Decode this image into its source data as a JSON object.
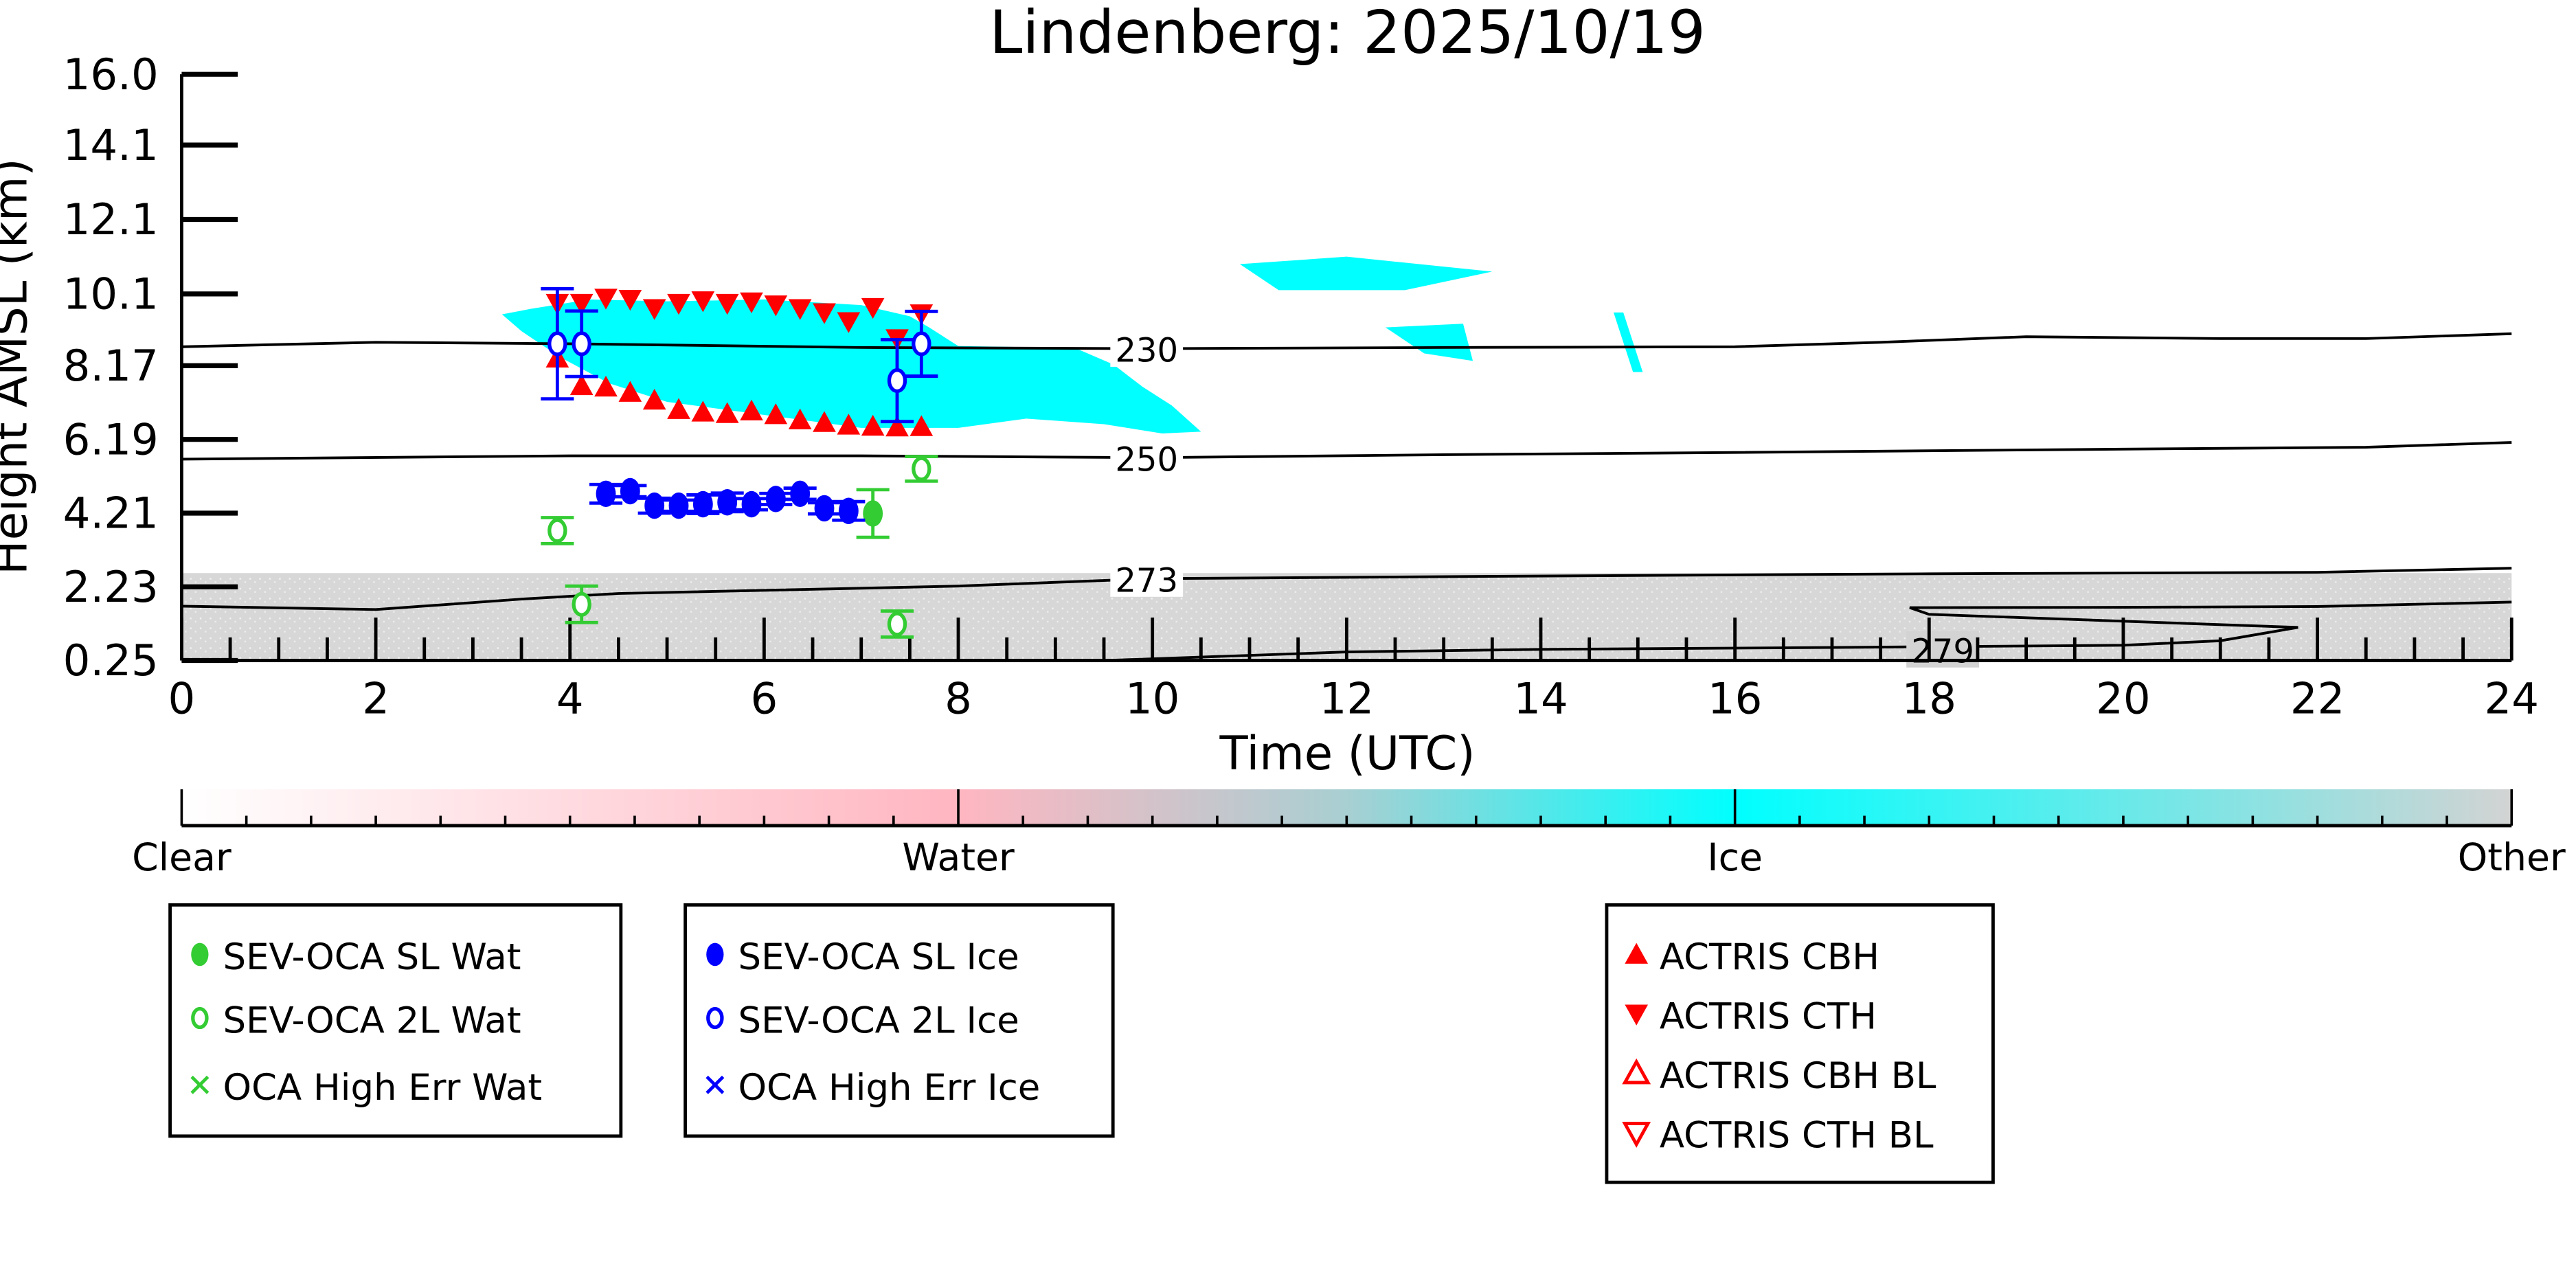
{
  "chart_data": {
    "type": "scatter",
    "title": "Lindenberg: 2025/10/19",
    "xlabel": "Time (UTC)",
    "ylabel": "Height AMSL (km)",
    "xlim": [
      0,
      24
    ],
    "ylim": [
      0.25,
      16.0
    ],
    "x_ticks": [
      "0",
      "2",
      "4",
      "6",
      "8",
      "10",
      "12",
      "14",
      "16",
      "18",
      "20",
      "22",
      "24"
    ],
    "y_ticks": [
      "0.25",
      "2.23",
      "4.21",
      "6.19",
      "8.17",
      "10.1",
      "12.1",
      "14.1",
      "16.0"
    ],
    "y_tick_values": [
      0.25,
      2.23,
      4.21,
      6.19,
      8.17,
      10.1,
      12.1,
      14.1,
      16.0
    ],
    "colors": {
      "red": "#ff0000",
      "blue": "#0000ff",
      "green": "#33cc33",
      "ice": "#00ffff",
      "other": "#d3d3d3",
      "water": "#ffb6c1"
    },
    "contours": [
      {
        "label": "230",
        "points": [
          [
            0,
            8.68
          ],
          [
            2,
            8.8
          ],
          [
            4,
            8.76
          ],
          [
            7,
            8.66
          ],
          [
            10,
            8.63
          ],
          [
            13,
            8.66
          ],
          [
            16,
            8.68
          ],
          [
            17.5,
            8.8
          ],
          [
            19,
            8.95
          ],
          [
            21,
            8.9
          ],
          [
            22.5,
            8.9
          ],
          [
            24,
            9.03
          ]
        ]
      },
      {
        "label": "250",
        "points": [
          [
            0,
            5.66
          ],
          [
            4,
            5.75
          ],
          [
            7,
            5.75
          ],
          [
            10,
            5.7
          ],
          [
            13,
            5.78
          ],
          [
            16,
            5.84
          ],
          [
            20,
            5.93
          ],
          [
            22.5,
            5.98
          ],
          [
            24,
            6.11
          ]
        ]
      },
      {
        "label": "273",
        "points": [
          [
            0,
            1.71
          ],
          [
            2,
            1.62
          ],
          [
            3.5,
            1.9
          ],
          [
            4.5,
            2.05
          ],
          [
            8,
            2.25
          ],
          [
            10,
            2.45
          ],
          [
            14,
            2.52
          ],
          [
            18,
            2.58
          ],
          [
            22,
            2.62
          ],
          [
            24,
            2.73
          ]
        ]
      },
      {
        "label": "279",
        "points": [
          [
            9.5,
            0.25
          ],
          [
            12,
            0.48
          ],
          [
            14,
            0.55
          ],
          [
            17,
            0.6
          ],
          [
            20,
            0.66
          ],
          [
            21,
            0.78
          ],
          [
            21.8,
            1.14
          ],
          [
            18,
            1.49
          ],
          [
            17.8,
            1.67
          ],
          [
            20,
            1.68
          ],
          [
            22,
            1.7
          ],
          [
            24,
            1.82
          ]
        ]
      }
    ],
    "ice_region": [
      [
        3.3,
        9.55
      ],
      [
        3.6,
        9.7
      ],
      [
        4.2,
        9.95
      ],
      [
        5,
        9.9
      ],
      [
        6,
        9.95
      ],
      [
        7,
        9.8
      ],
      [
        7.5,
        9.5
      ],
      [
        7.7,
        9.2
      ],
      [
        8,
        8.7
      ],
      [
        9.2,
        8.65
      ],
      [
        9.6,
        8.2
      ],
      [
        9.9,
        7.6
      ],
      [
        10.2,
        7.1
      ],
      [
        10.5,
        6.4
      ],
      [
        10.1,
        6.35
      ],
      [
        9.5,
        6.6
      ],
      [
        8.7,
        6.75
      ],
      [
        8,
        6.5
      ],
      [
        7,
        6.5
      ],
      [
        6,
        6.85
      ],
      [
        5,
        7.2
      ],
      [
        4.4,
        7.7
      ],
      [
        3.9,
        8.4
      ],
      [
        3.5,
        9.1
      ],
      [
        3.3,
        9.55
      ]
    ],
    "ice_patches": [
      [
        [
          10.9,
          10.9
        ],
        [
          12,
          11.1
        ],
        [
          13.5,
          10.7
        ],
        [
          12.6,
          10.2
        ],
        [
          11.3,
          10.2
        ]
      ],
      [
        [
          12.4,
          9.2
        ],
        [
          13.2,
          9.3
        ],
        [
          13.3,
          8.3
        ],
        [
          12.8,
          8.5
        ]
      ],
      [
        [
          14.75,
          9.6
        ],
        [
          14.85,
          9.6
        ],
        [
          15.05,
          8.0
        ],
        [
          14.95,
          8.0
        ]
      ]
    ],
    "other_top_km": 2.6,
    "series": [
      {
        "name": "SEV-OCA SL Wat",
        "marker": "filled-circle",
        "color": "#33cc33",
        "points": [
          {
            "x": 7.12,
            "y": 4.2,
            "err": 0.64
          }
        ]
      },
      {
        "name": "SEV-OCA 2L Wat",
        "marker": "open-circle",
        "color": "#33cc33",
        "points": [
          {
            "x": 3.87,
            "y": 3.74,
            "err": 0.35
          },
          {
            "x": 4.12,
            "y": 1.76,
            "err": 0.49
          },
          {
            "x": 7.37,
            "y": 1.23,
            "err": 0.35
          },
          {
            "x": 7.62,
            "y": 5.4,
            "err": 0.33
          }
        ]
      },
      {
        "name": "OCA High Err Wat",
        "marker": "x",
        "color": "#33cc33",
        "points": []
      },
      {
        "name": "SEV-OCA SL Ice",
        "marker": "filled-circle",
        "color": "#0000ff",
        "points": [
          {
            "x": 4.37,
            "y": 4.73,
            "err": 0.25
          },
          {
            "x": 4.62,
            "y": 4.8,
            "err": 0.15
          },
          {
            "x": 4.87,
            "y": 4.41,
            "err": 0.2
          },
          {
            "x": 5.12,
            "y": 4.41,
            "err": 0.15
          },
          {
            "x": 5.37,
            "y": 4.45,
            "err": 0.25
          },
          {
            "x": 5.62,
            "y": 4.5,
            "err": 0.25
          },
          {
            "x": 5.87,
            "y": 4.45,
            "err": 0.15
          },
          {
            "x": 6.12,
            "y": 4.59,
            "err": 0.15
          },
          {
            "x": 6.37,
            "y": 4.73,
            "err": 0.15
          },
          {
            "x": 6.62,
            "y": 4.34,
            "err": 0.15
          },
          {
            "x": 6.87,
            "y": 4.27,
            "err": 0.25
          }
        ]
      },
      {
        "name": "SEV-OCA 2L Ice",
        "marker": "open-circle",
        "color": "#0000ff",
        "points": [
          {
            "x": 3.87,
            "y": 8.76,
            "err": 1.48
          },
          {
            "x": 4.12,
            "y": 8.76,
            "err": 0.88
          },
          {
            "x": 7.37,
            "y": 7.77,
            "err": 1.1
          },
          {
            "x": 7.62,
            "y": 8.76,
            "err": 0.87
          }
        ]
      },
      {
        "name": "OCA High Err Ice",
        "marker": "x",
        "color": "#0000ff",
        "points": []
      },
      {
        "name": "ACTRIS CBH",
        "marker": "triangle-up",
        "color": "#ff0000",
        "points": [
          {
            "x": 3.87,
            "y": 8.37
          },
          {
            "x": 4.12,
            "y": 7.63
          },
          {
            "x": 4.37,
            "y": 7.59
          },
          {
            "x": 4.62,
            "y": 7.45
          },
          {
            "x": 4.87,
            "y": 7.24
          },
          {
            "x": 5.12,
            "y": 6.99
          },
          {
            "x": 5.37,
            "y": 6.92
          },
          {
            "x": 5.62,
            "y": 6.88
          },
          {
            "x": 5.87,
            "y": 6.95
          },
          {
            "x": 6.12,
            "y": 6.85
          },
          {
            "x": 6.37,
            "y": 6.71
          },
          {
            "x": 6.62,
            "y": 6.64
          },
          {
            "x": 6.87,
            "y": 6.57
          },
          {
            "x": 7.12,
            "y": 6.54
          },
          {
            "x": 7.37,
            "y": 6.52
          },
          {
            "x": 7.62,
            "y": 6.53
          }
        ]
      },
      {
        "name": "ACTRIS CTH",
        "marker": "triangle-down",
        "color": "#ff0000",
        "points": [
          {
            "x": 3.87,
            "y": 9.85
          },
          {
            "x": 4.12,
            "y": 9.85
          },
          {
            "x": 4.37,
            "y": 9.99
          },
          {
            "x": 4.62,
            "y": 9.96
          },
          {
            "x": 4.87,
            "y": 9.71
          },
          {
            "x": 5.12,
            "y": 9.85
          },
          {
            "x": 5.37,
            "y": 9.92
          },
          {
            "x": 5.62,
            "y": 9.85
          },
          {
            "x": 5.87,
            "y": 9.89
          },
          {
            "x": 6.12,
            "y": 9.81
          },
          {
            "x": 6.37,
            "y": 9.71
          },
          {
            "x": 6.62,
            "y": 9.6
          },
          {
            "x": 6.87,
            "y": 9.36
          },
          {
            "x": 7.12,
            "y": 9.74
          },
          {
            "x": 7.37,
            "y": 8.9
          },
          {
            "x": 7.62,
            "y": 9.57
          }
        ]
      },
      {
        "name": "ACTRIS CBH BL",
        "marker": "open-triangle-up",
        "color": "#ff0000",
        "points": []
      },
      {
        "name": "ACTRIS CTH BL",
        "marker": "open-triangle-down",
        "color": "#ff0000",
        "points": []
      }
    ],
    "colorbar": {
      "labels": [
        "Clear",
        "Water",
        "Ice",
        "Other"
      ],
      "stops": [
        "#ffffff",
        "#ffb6c1",
        "#00ffff",
        "#d3d3d3"
      ]
    },
    "legend_groups": [
      [
        0,
        1,
        2
      ],
      [
        3,
        4,
        5
      ],
      [
        6,
        7,
        8,
        9
      ]
    ]
  }
}
